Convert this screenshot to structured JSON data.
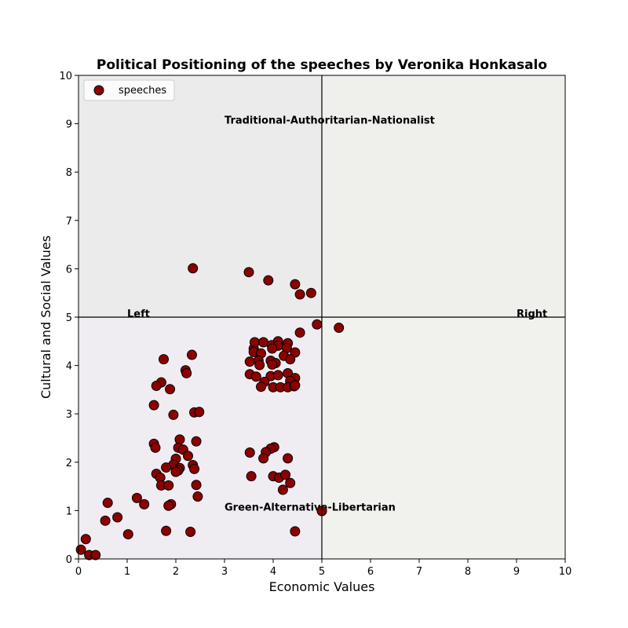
{
  "chart_data": {
    "type": "scatter",
    "title": "Political Positioning of the speeches by Veronika Honkasalo",
    "xlabel": "Economic Values",
    "ylabel": "Cultural and Social Values",
    "xlim": [
      0,
      10
    ],
    "ylim": [
      0,
      10
    ],
    "xticks": [
      "0",
      "1",
      "2",
      "3",
      "4",
      "5",
      "6",
      "7",
      "8",
      "9",
      "10"
    ],
    "yticks": [
      "0",
      "1",
      "2",
      "3",
      "4",
      "5",
      "6",
      "7",
      "8",
      "9",
      "10"
    ],
    "grid": false,
    "legend_position": "top-left",
    "quadrant_colors": {
      "top_left": "#ebebeb",
      "top_right": "#eff0ec",
      "bottom_left": "#efecf2",
      "bottom_right": "#f1f2ee"
    },
    "divider_x": 5,
    "divider_y": 5,
    "annotations": [
      {
        "text": "Traditional-Authoritarian-Nationalist",
        "x": 3.0,
        "y": 9.0
      },
      {
        "text": "Green-Alternative-Libertarian",
        "x": 3.0,
        "y": 1.0
      },
      {
        "text": "Left",
        "x": 1.0,
        "y": 5.0
      },
      {
        "text": "Right",
        "x": 9.0,
        "y": 5.0
      }
    ],
    "series": [
      {
        "name": "speeches",
        "color": "#8b0000",
        "edge_color": "#000000",
        "points": [
          [
            2.35,
            6.01
          ],
          [
            3.5,
            5.93
          ],
          [
            3.9,
            5.76
          ],
          [
            4.45,
            5.68
          ],
          [
            4.55,
            5.47
          ],
          [
            4.78,
            5.5
          ],
          [
            4.9,
            4.85
          ],
          [
            5.35,
            4.78
          ],
          [
            4.55,
            4.68
          ],
          [
            2.33,
            4.22
          ],
          [
            1.75,
            4.13
          ],
          [
            2.2,
            3.9
          ],
          [
            2.22,
            3.84
          ],
          [
            1.7,
            3.65
          ],
          [
            1.6,
            3.58
          ],
          [
            1.88,
            3.51
          ],
          [
            1.55,
            3.18
          ],
          [
            2.38,
            3.03
          ],
          [
            2.48,
            3.04
          ],
          [
            1.95,
            2.98
          ],
          [
            2.08,
            2.47
          ],
          [
            2.42,
            2.43
          ],
          [
            1.55,
            2.38
          ],
          [
            1.58,
            2.3
          ],
          [
            2.05,
            2.3
          ],
          [
            2.15,
            2.26
          ],
          [
            2.25,
            2.13
          ],
          [
            2.0,
            2.07
          ],
          [
            1.95,
            1.95
          ],
          [
            2.35,
            1.94
          ],
          [
            1.8,
            1.89
          ],
          [
            2.08,
            1.88
          ],
          [
            2.38,
            1.86
          ],
          [
            2.05,
            1.83
          ],
          [
            2.0,
            1.8
          ],
          [
            1.6,
            1.76
          ],
          [
            1.68,
            1.68
          ],
          [
            1.7,
            1.52
          ],
          [
            1.85,
            1.52
          ],
          [
            2.42,
            1.53
          ],
          [
            2.45,
            1.29
          ],
          [
            1.2,
            1.26
          ],
          [
            1.35,
            1.13
          ],
          [
            0.6,
            1.16
          ],
          [
            1.9,
            1.13
          ],
          [
            1.85,
            1.1
          ],
          [
            0.8,
            0.86
          ],
          [
            0.55,
            0.79
          ],
          [
            1.02,
            0.51
          ],
          [
            1.8,
            0.58
          ],
          [
            2.3,
            0.56
          ],
          [
            0.15,
            0.41
          ],
          [
            0.05,
            0.19
          ],
          [
            0.22,
            0.08
          ],
          [
            0.35,
            0.08
          ],
          [
            3.6,
            4.35
          ],
          [
            3.62,
            4.48
          ],
          [
            3.8,
            4.48
          ],
          [
            3.97,
            4.42
          ],
          [
            4.1,
            4.5
          ],
          [
            4.3,
            4.46
          ],
          [
            4.1,
            4.41
          ],
          [
            3.98,
            4.35
          ],
          [
            4.28,
            4.36
          ],
          [
            3.6,
            4.28
          ],
          [
            3.75,
            4.25
          ],
          [
            4.45,
            4.27
          ],
          [
            4.22,
            4.2
          ],
          [
            4.35,
            4.13
          ],
          [
            3.7,
            4.1
          ],
          [
            3.52,
            4.08
          ],
          [
            3.95,
            4.1
          ],
          [
            4.05,
            4.05
          ],
          [
            3.72,
            4.01
          ],
          [
            3.98,
            4.02
          ],
          [
            4.3,
            3.84
          ],
          [
            3.52,
            3.82
          ],
          [
            3.65,
            3.77
          ],
          [
            3.95,
            3.78
          ],
          [
            4.1,
            3.8
          ],
          [
            4.45,
            3.74
          ],
          [
            4.35,
            3.68
          ],
          [
            3.82,
            3.66
          ],
          [
            3.75,
            3.56
          ],
          [
            4.0,
            3.55
          ],
          [
            4.15,
            3.55
          ],
          [
            4.3,
            3.55
          ],
          [
            4.43,
            3.57
          ],
          [
            4.45,
            3.59
          ],
          [
            4.02,
            2.31
          ],
          [
            3.95,
            2.28
          ],
          [
            3.85,
            2.21
          ],
          [
            3.52,
            2.2
          ],
          [
            3.8,
            2.08
          ],
          [
            4.3,
            2.08
          ],
          [
            4.0,
            1.71
          ],
          [
            3.55,
            1.71
          ],
          [
            4.12,
            1.68
          ],
          [
            4.25,
            1.74
          ],
          [
            4.35,
            1.57
          ],
          [
            4.2,
            1.43
          ],
          [
            5.0,
            0.99
          ],
          [
            4.45,
            0.57
          ]
        ]
      }
    ]
  }
}
